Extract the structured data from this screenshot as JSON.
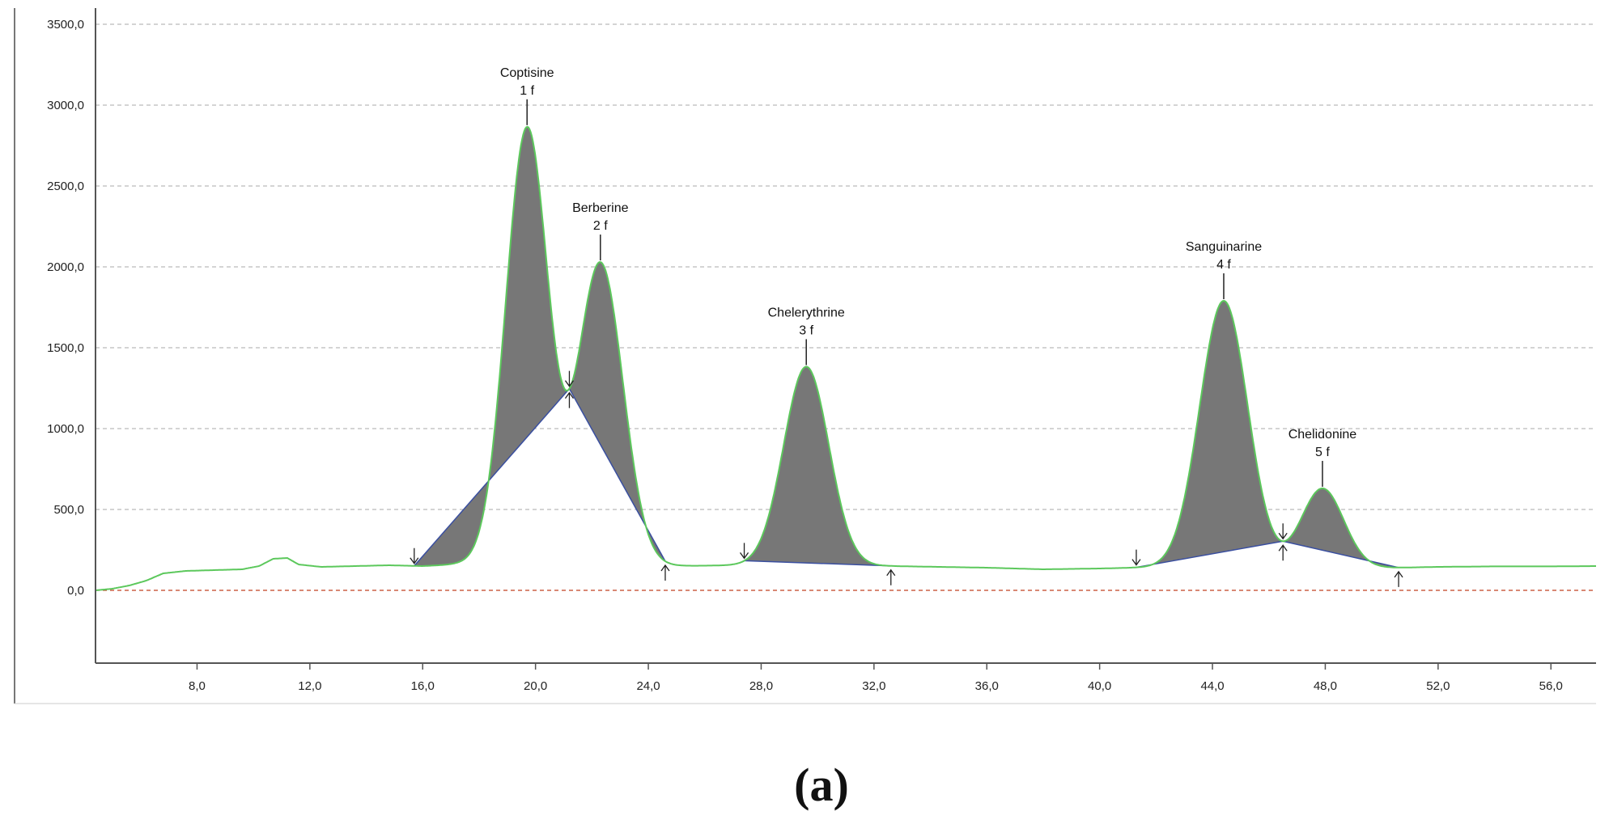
{
  "chart_data": {
    "type": "line",
    "caption": "(a)",
    "xlim": [
      4.4,
      57.6
    ],
    "ylim": [
      -450,
      3600
    ],
    "x_ticks": [
      "8,0",
      "12,0",
      "16,0",
      "20,0",
      "24,0",
      "28,0",
      "32,0",
      "36,0",
      "40,0",
      "44,0",
      "48,0",
      "52,0",
      "56,0"
    ],
    "x_tick_values": [
      8,
      12,
      16,
      20,
      24,
      28,
      32,
      36,
      40,
      44,
      48,
      52,
      56
    ],
    "y_ticks": [
      "0,0",
      "500,0",
      "1000,0",
      "1500,0",
      "2000,0",
      "2500,0",
      "3000,0",
      "3500,0"
    ],
    "y_tick_values": [
      0,
      500,
      1000,
      1500,
      2000,
      2500,
      3000,
      3500
    ],
    "grid": true,
    "peaks": [
      {
        "name": "Coptisine",
        "number": "1 f",
        "rt": 19.7,
        "height": 2700,
        "sigma": 0.75,
        "start": 15.7,
        "end": 21.2
      },
      {
        "name": "Berberine",
        "number": "2 f",
        "rt": 22.3,
        "height": 1870,
        "sigma": 0.8,
        "start": 21.2,
        "end": 24.6
      },
      {
        "name": "Chelerythrine",
        "number": "3 f",
        "rt": 29.6,
        "height": 1230,
        "sigma": 0.8,
        "start": 27.4,
        "end": 32.6
      },
      {
        "name": "Sanguinarine",
        "number": "4 f",
        "rt": 44.4,
        "height": 1650,
        "sigma": 0.85,
        "start": 41.3,
        "end": 46.5
      },
      {
        "name": "Chelidonine",
        "number": "5 f",
        "rt": 47.9,
        "height": 490,
        "sigma": 0.75,
        "start": 46.5,
        "end": 50.6
      }
    ],
    "baseline": [
      [
        4.4,
        0
      ],
      [
        5.0,
        10
      ],
      [
        5.6,
        30
      ],
      [
        6.2,
        60
      ],
      [
        6.8,
        105
      ],
      [
        7.6,
        120
      ],
      [
        8.6,
        125
      ],
      [
        9.6,
        130
      ],
      [
        10.2,
        150
      ],
      [
        10.7,
        195
      ],
      [
        11.2,
        200
      ],
      [
        11.6,
        160
      ],
      [
        12.4,
        145
      ],
      [
        13.6,
        150
      ],
      [
        14.8,
        155
      ],
      [
        16.0,
        150
      ],
      [
        17.2,
        160
      ],
      [
        24.6,
        150
      ],
      [
        27.4,
        155
      ],
      [
        32.6,
        150
      ],
      [
        36.0,
        140
      ],
      [
        38.0,
        130
      ],
      [
        40.0,
        135
      ],
      [
        41.3,
        140
      ],
      [
        46.5,
        140
      ],
      [
        50.6,
        140
      ],
      [
        52.0,
        145
      ],
      [
        54.0,
        148
      ],
      [
        56.0,
        148
      ],
      [
        57.6,
        150
      ]
    ],
    "colors": {
      "trace": "#5cc85c",
      "fill": "#777777",
      "integration_baseline": "#3a4fa0",
      "zero_line": "#c04020",
      "grid": "#aaaaaa"
    }
  }
}
